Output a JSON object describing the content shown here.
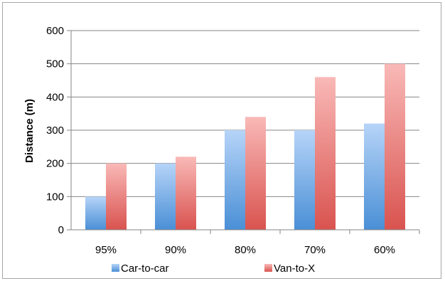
{
  "chart_data": {
    "type": "bar",
    "title": "",
    "xlabel": "",
    "ylabel": "Distance (m)",
    "categories": [
      "95%",
      "90%",
      "80%",
      "70%",
      "60%"
    ],
    "series": [
      {
        "name": "Car-to-car",
        "values": [
          100,
          200,
          300,
          300,
          320
        ],
        "color_top": "#b6d4f8",
        "color_bottom": "#4a8fd6"
      },
      {
        "name": "Van-to-X",
        "values": [
          200,
          220,
          340,
          460,
          500
        ],
        "color_top": "#f9b9b7",
        "color_bottom": "#d9534f"
      }
    ],
    "ylim": [
      0,
      600
    ],
    "yticks": [
      "0",
      "100",
      "200",
      "300",
      "400",
      "500",
      "600"
    ],
    "grid": true,
    "legend_position": "bottom"
  }
}
